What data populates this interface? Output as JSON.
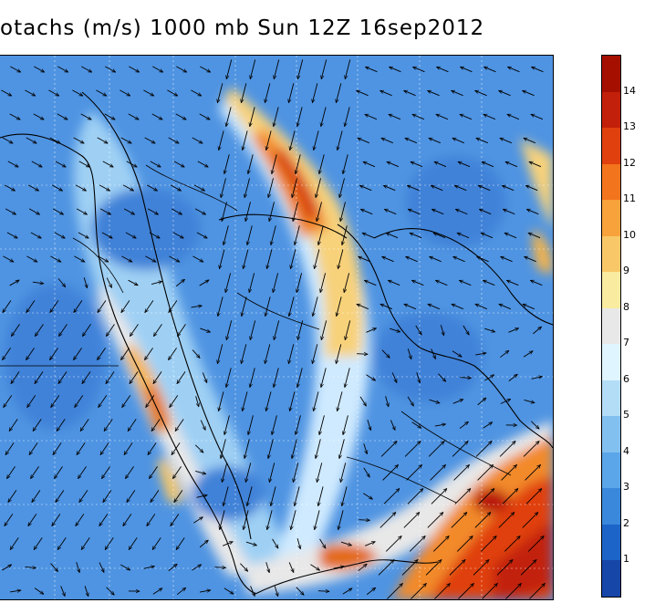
{
  "title": "otachs (m/s) 1000 mb Sun 12Z 16sep2012",
  "colorbar": {
    "labels": [
      "14",
      "13",
      "12",
      "11",
      "10",
      "9",
      "8",
      "7",
      "6",
      "5",
      "4",
      "3",
      "2",
      "1"
    ],
    "colors": [
      "#a50f00",
      "#c2200a",
      "#e0400e",
      "#f2741c",
      "#f7a23a",
      "#f8c868",
      "#f9eba0",
      "#e8e8e8",
      "#dff5ff",
      "#b3dcf7",
      "#82c0ef",
      "#5aa6e8",
      "#3a88dc",
      "#1c64c8",
      "#1646a8"
    ]
  },
  "map": {
    "background_color": "#4f94e2",
    "grid": "dashed",
    "coastline_color": "#000000",
    "vector_color": "#000000"
  }
}
